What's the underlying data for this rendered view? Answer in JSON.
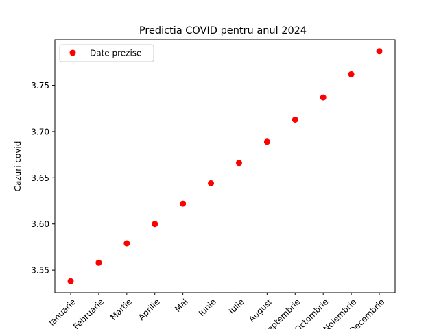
{
  "chart_data": {
    "type": "scatter",
    "title": "Predictia COVID pentru anul 2024",
    "xlabel": "",
    "ylabel": "Cazuri covid",
    "categories": [
      "Ianuarie",
      "Februarie",
      "Martie",
      "Aprilie",
      "Mai",
      "Iunie",
      "Iulie",
      "August",
      "Septembrie",
      "Octombrie",
      "Noiembrie",
      "Decembrie"
    ],
    "series": [
      {
        "name": "Date prezise",
        "color": "#ff0000",
        "values": [
          3.538,
          3.558,
          3.579,
          3.6,
          3.622,
          3.644,
          3.666,
          3.689,
          3.713,
          3.737,
          3.762,
          3.787
        ]
      }
    ],
    "yticks": [
      3.55,
      3.6,
      3.65,
      3.7,
      3.75
    ],
    "ytick_labels": [
      "3.55",
      "3.60",
      "3.65",
      "3.70",
      "3.75"
    ],
    "ylim": [
      3.5256,
      3.7994
    ],
    "xtick_rotation": 45,
    "legend_position": "upper-left",
    "grid": false
  }
}
